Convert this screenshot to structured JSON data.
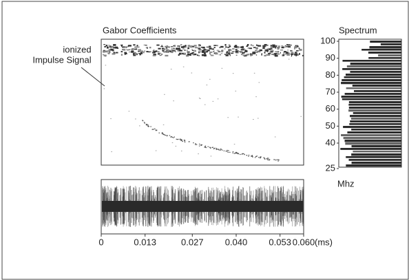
{
  "chart_data": {
    "type": "spectrogram",
    "title": "Gabor Coefficients",
    "annotation": [
      "ionized",
      "Impulse Signal"
    ],
    "spectrum_title": "Spectrum",
    "ylim": [
      25,
      100
    ],
    "yticks": [
      25,
      40,
      50,
      60,
      70,
      80,
      90,
      100
    ],
    "y_unit": "Mhz",
    "xlim": [
      0,
      0.06
    ],
    "xticks": [
      0,
      0.013,
      0.027,
      {
        "value": 0.04,
        "label": "0.040"
      },
      0.053,
      {
        "value": 0.06,
        "label": "0.060"
      }
    ],
    "x_unit": "(ms)"
  }
}
